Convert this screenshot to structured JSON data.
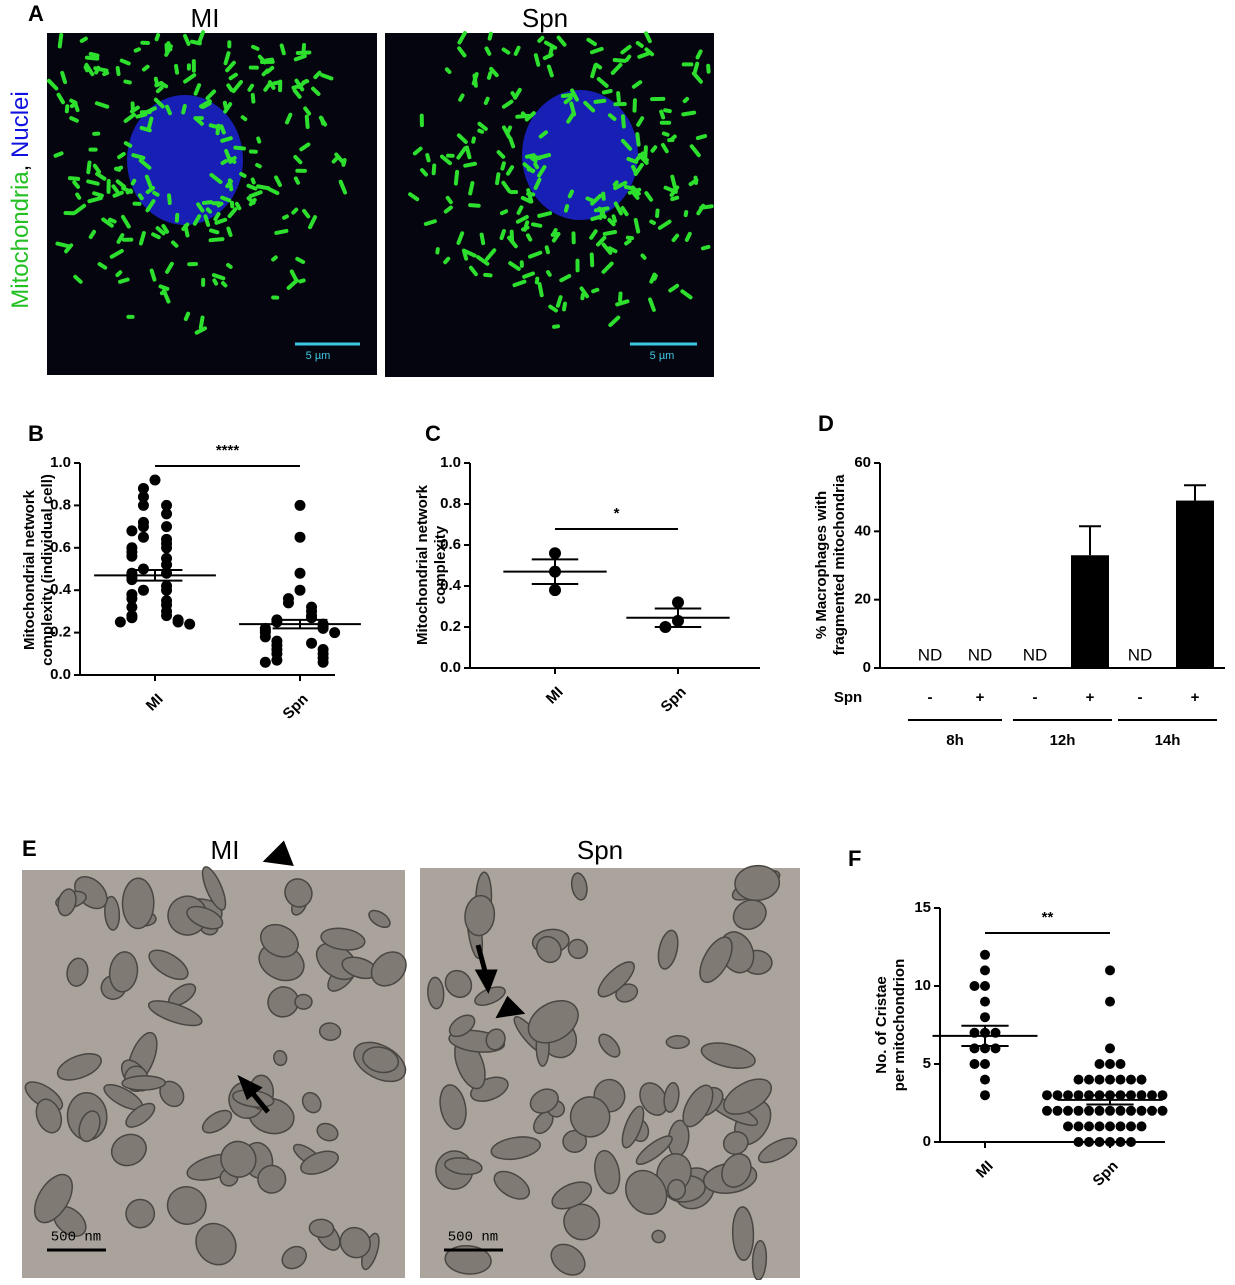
{
  "panels": {
    "a": {
      "letter": "A",
      "titles": [
        "MI",
        "Spn"
      ],
      "stain": [
        "Mitochondria",
        ", ",
        "Nuclei"
      ],
      "scale_bars": [
        "5 µm",
        "5 µm"
      ]
    },
    "e": {
      "letter": "E",
      "titles": [
        "MI",
        "Spn"
      ],
      "scale_bars": [
        "500 nm",
        "500 nm"
      ]
    }
  },
  "chart_data": [
    {
      "type": "dot",
      "panel": "B",
      "ylabel": [
        "Mitochondrial network",
        "complexity (individual cell)"
      ],
      "categories": [
        "MI",
        "Spn"
      ],
      "points": [
        [
          0.92,
          0.88,
          0.84,
          0.8,
          0.8,
          0.76,
          0.72,
          0.7,
          0.7,
          0.68,
          0.65,
          0.64,
          0.62,
          0.6,
          0.6,
          0.58,
          0.56,
          0.55,
          0.52,
          0.5,
          0.48,
          0.48,
          0.46,
          0.45,
          0.42,
          0.4,
          0.4,
          0.38,
          0.36,
          0.35,
          0.33,
          0.32,
          0.3,
          0.28,
          0.28,
          0.27,
          0.26,
          0.25,
          0.25,
          0.24
        ],
        [
          0.8,
          0.65,
          0.48,
          0.4,
          0.36,
          0.34,
          0.32,
          0.3,
          0.28,
          0.27,
          0.26,
          0.25,
          0.24,
          0.23,
          0.22,
          0.22,
          0.21,
          0.2,
          0.2,
          0.18,
          0.16,
          0.15,
          0.14,
          0.12,
          0.12,
          0.1,
          0.1,
          0.08,
          0.07,
          0.06,
          0.06
        ]
      ],
      "means": [
        0.47,
        0.24
      ],
      "errors": [
        0.025,
        0.02
      ],
      "significance": "****",
      "color": "#000000",
      "ylim": [
        0,
        1.0
      ],
      "yticks": [
        {
          "value": 0,
          "label": "0.0"
        },
        0.2,
        0.4,
        0.6,
        0.8,
        {
          "value": 1.0,
          "label": "1.0"
        }
      ]
    },
    {
      "type": "dot",
      "panel": "C",
      "ylabel": [
        "Mitochondrial network",
        "complexity"
      ],
      "categories": [
        "MI",
        "Spn"
      ],
      "points": [
        [
          0.56,
          0.47,
          0.38
        ],
        [
          0.32,
          0.23,
          0.2
        ]
      ],
      "means": [
        0.47,
        0.245
      ],
      "errors": [
        0.06,
        0.045
      ],
      "significance": "*",
      "color": "#000000",
      "ylim": [
        0,
        1.0
      ],
      "yticks": [
        {
          "value": 0,
          "label": "0.0"
        },
        0.2,
        0.4,
        0.6,
        0.8,
        {
          "value": 1.0,
          "label": "1.0"
        }
      ]
    },
    {
      "type": "bar",
      "panel": "D",
      "ylabel": [
        "% Macrophages with",
        "fragmented mitochondria"
      ],
      "row_label": "Spn",
      "categories": [
        "-",
        "+",
        "-",
        "+",
        "-",
        "+"
      ],
      "groups": [
        "8h",
        "12h",
        "14h"
      ],
      "values": [
        null,
        null,
        null,
        33,
        null,
        49
      ],
      "errors": [
        null,
        null,
        null,
        8.5,
        null,
        4.5
      ],
      "value_labels": [
        "ND",
        "ND",
        "ND",
        null,
        "ND",
        null
      ],
      "color": "#000000",
      "ylim": [
        0,
        60
      ],
      "yticks": [
        0,
        20,
        40,
        60
      ]
    },
    {
      "type": "dot",
      "panel": "F",
      "ylabel": [
        "No. of Cristae",
        "per mitochondrion"
      ],
      "categories": [
        "MI",
        "Spn"
      ],
      "points": [
        [
          12,
          11,
          10,
          10,
          9,
          8,
          7,
          7,
          7,
          6,
          6,
          6,
          5,
          5,
          4,
          3
        ],
        [
          11,
          9,
          6,
          5,
          5,
          5,
          4,
          4,
          4,
          4,
          4,
          4,
          4,
          3,
          3,
          3,
          3,
          3,
          3,
          3,
          3,
          3,
          3,
          3,
          3,
          2,
          2,
          2,
          2,
          2,
          2,
          2,
          2,
          2,
          2,
          2,
          2,
          1,
          1,
          1,
          1,
          1,
          1,
          1,
          1,
          0,
          0,
          0,
          0,
          0,
          0
        ]
      ],
      "means": [
        6.8,
        2.7
      ],
      "errors": [
        0.65,
        0.3
      ],
      "significance": "**",
      "color": "#000000",
      "ylim": [
        0,
        15
      ],
      "yticks": [
        0,
        5,
        10,
        15
      ]
    }
  ]
}
